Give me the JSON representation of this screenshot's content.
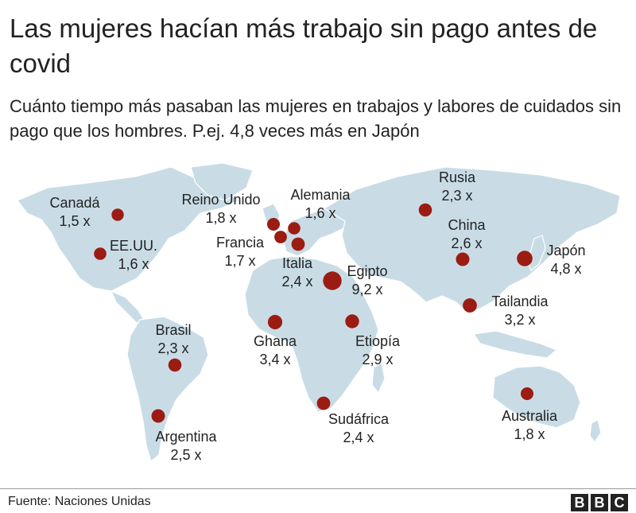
{
  "header": {
    "title": "Las mujeres hacían más trabajo sin pago antes de covid",
    "subtitle": "Cuánto tiempo más pasaban las mujeres en trabajos y labores de cuidados sin pago que los hombres. P.ej. 4,8 veces más en Japón"
  },
  "colors": {
    "land": "#c9dce6",
    "marker": "#9b1c12",
    "text": "#222222"
  },
  "countries": [
    {
      "name": "Canadá",
      "value": "1,5 x",
      "ratio": 1.5
    },
    {
      "name": "EE.UU.",
      "value": "1,6 x",
      "ratio": 1.6
    },
    {
      "name": "Reino Unido",
      "value": "1,8 x",
      "ratio": 1.8
    },
    {
      "name": "Alemania",
      "value": "1,6 x",
      "ratio": 1.6
    },
    {
      "name": "Francia",
      "value": "1,7 x",
      "ratio": 1.7
    },
    {
      "name": "Italia",
      "value": "2,4 x",
      "ratio": 2.4
    },
    {
      "name": "Egipto",
      "value": "9,2 x",
      "ratio": 9.2
    },
    {
      "name": "Rusia",
      "value": "2,3 x",
      "ratio": 2.3
    },
    {
      "name": "China",
      "value": "2,6 x",
      "ratio": 2.6
    },
    {
      "name": "Japón",
      "value": "4,8 x",
      "ratio": 4.8
    },
    {
      "name": "Tailandia",
      "value": "3,2 x",
      "ratio": 3.2
    },
    {
      "name": "Brasil",
      "value": "2,3 x",
      "ratio": 2.3
    },
    {
      "name": "Ghana",
      "value": "3,4 x",
      "ratio": 3.4
    },
    {
      "name": "Etiopía",
      "value": "2,9 x",
      "ratio": 2.9
    },
    {
      "name": "Sudáfrica",
      "value": "2,4 x",
      "ratio": 2.4
    },
    {
      "name": "Argentina",
      "value": "2,5 x",
      "ratio": 2.5
    },
    {
      "name": "Australia",
      "value": "1,8 x",
      "ratio": 1.8
    }
  ],
  "footer": {
    "source": "Fuente: Naciones Unidas",
    "logo": [
      "B",
      "B",
      "C"
    ]
  }
}
